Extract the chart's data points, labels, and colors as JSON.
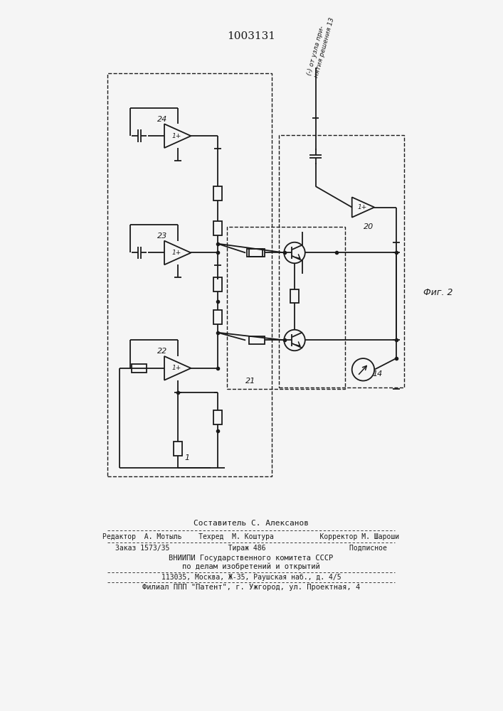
{
  "title": "1003131",
  "fig2_label": "Фиг. 2",
  "rotated_text": "(-) от узла при-\nнятия решения 13",
  "label_20": "20",
  "label_21": "21",
  "label_22": "22",
  "label_23": "23",
  "label_24": "24",
  "label_14": "14",
  "label_1": "1",
  "footer_lines": [
    "Составитель С. Алексанов",
    "Редактор  А. Мотыль    Техред  М. Коштура           Корректор М. Шароши",
    "Заказ 1573/35              Тираж 486                    Подписное",
    "ВНИИПИ Государственного комитета СССР",
    "по делам изобретений и открытий",
    "113035, Москва, Ж-35, Раушская наб., д. 4/5",
    "Филиал ППП \"Патент\", г. Ужгород, ул. Проектная, 4"
  ],
  "bg_color": "#f5f5f5",
  "line_color": "#1a1a1a"
}
